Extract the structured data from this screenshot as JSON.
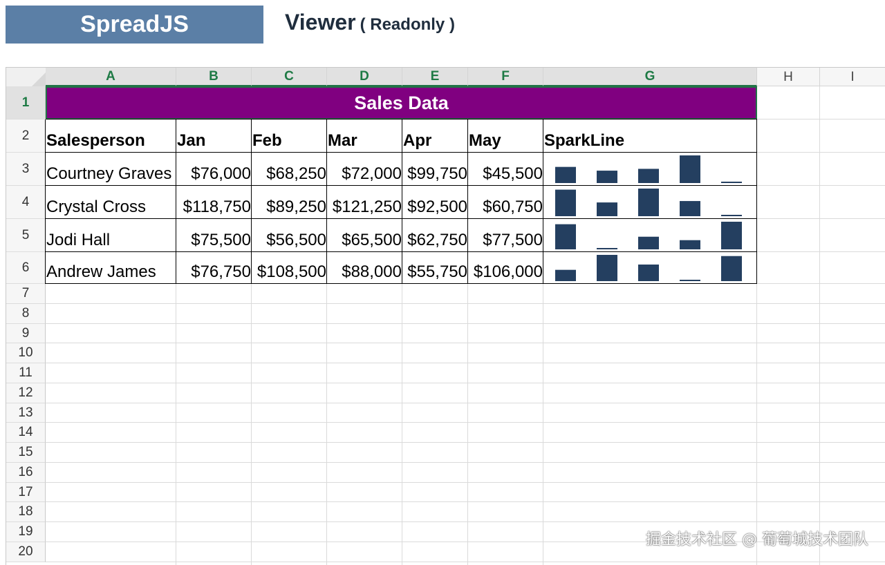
{
  "header": {
    "brand": "SpreadJS",
    "viewer_title": "Viewer",
    "viewer_subtitle": "( Readonly )"
  },
  "columns": [
    "A",
    "B",
    "C",
    "D",
    "E",
    "F",
    "G",
    "H",
    "I"
  ],
  "rows": [
    "1",
    "2",
    "3",
    "4",
    "5",
    "6",
    "7",
    "8",
    "9",
    "10",
    "11",
    "12",
    "13",
    "14",
    "15",
    "16",
    "17",
    "18",
    "19",
    "20"
  ],
  "sheet": {
    "title": "Sales Data",
    "headers": [
      "Salesperson",
      "Jan",
      "Feb",
      "Mar",
      "Apr",
      "May",
      "SparkLine"
    ],
    "records": [
      {
        "name": "Courtney Graves",
        "values": [
          "$76,000",
          "$68,250",
          "$72,000",
          "$99,750",
          "$45,500"
        ],
        "raw": [
          76000,
          68250,
          72000,
          99750,
          45500
        ]
      },
      {
        "name": "Crystal Cross",
        "values": [
          "$118,750",
          "$89,250",
          "$121,250",
          "$92,500",
          "$60,750"
        ],
        "raw": [
          118750,
          89250,
          121250,
          92500,
          60750
        ]
      },
      {
        "name": "Jodi Hall",
        "values": [
          "$75,500",
          "$56,500",
          "$65,500",
          "$62,750",
          "$77,500"
        ],
        "raw": [
          75500,
          56500,
          65500,
          62750,
          77500
        ]
      },
      {
        "name": "Andrew James",
        "values": [
          "$76,750",
          "$108,500",
          "$88,000",
          "$55,750",
          "$106,000"
        ],
        "raw": [
          76750,
          108500,
          88000,
          55750,
          106000
        ]
      }
    ],
    "sparkline_color": "#243f60",
    "title_bg": "#800080"
  },
  "watermark": "掘金技术社区 @ 葡萄城技术团队"
}
